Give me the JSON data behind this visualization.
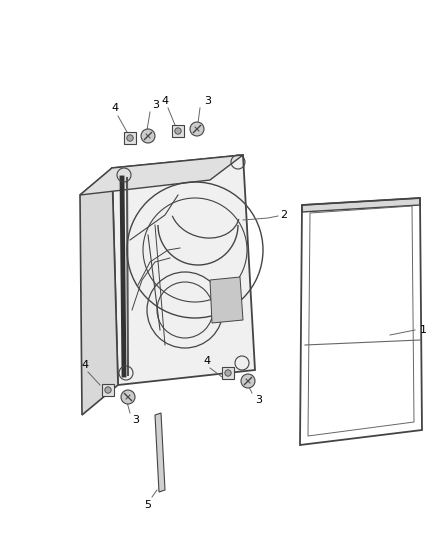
{
  "bg_color": "#ffffff",
  "lc": "#666666",
  "dc": "#444444",
  "fig_width": 4.38,
  "fig_height": 5.33,
  "dpi": 100
}
